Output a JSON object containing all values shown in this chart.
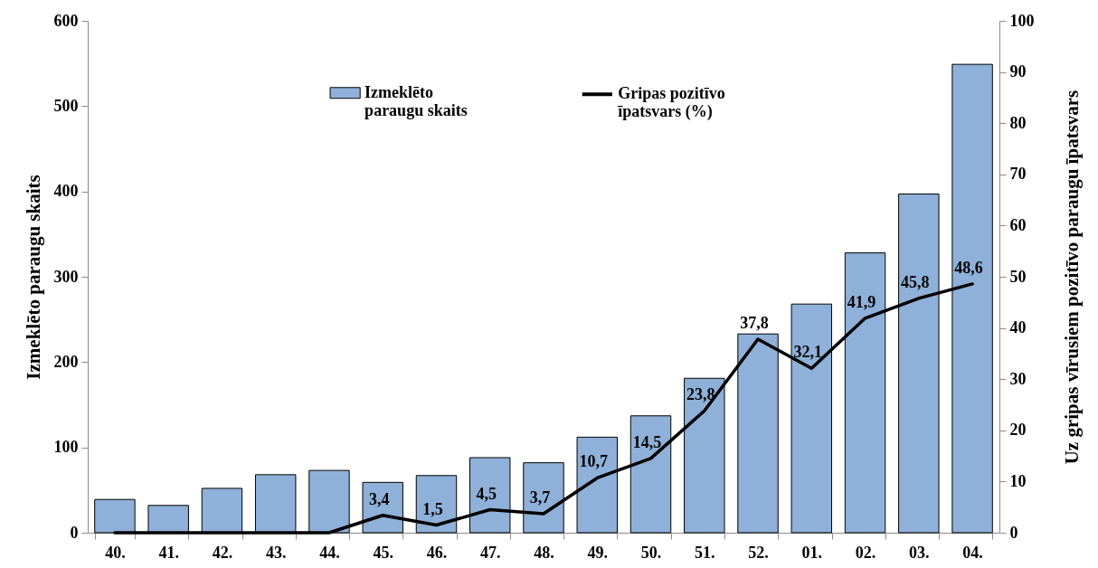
{
  "chart_data": {
    "type": "bar",
    "categories": [
      "40.",
      "41.",
      "42.",
      "43.",
      "44.",
      "45.",
      "46.",
      "47.",
      "48.",
      "49.",
      "50.",
      "51.",
      "52.",
      "01.",
      "02.",
      "03.",
      "04."
    ],
    "ylabel": "Izmeklēto paraugu skaits",
    "y2label": "Uz gripas vīrusiem pozitīvo paraugu īpatsvars",
    "ylim": [
      0,
      600
    ],
    "yticks": [
      0,
      100,
      200,
      300,
      400,
      500,
      600
    ],
    "y2lim": [
      0,
      100
    ],
    "y2ticks": [
      0,
      10,
      20,
      30,
      40,
      50,
      60,
      70,
      80,
      90,
      100
    ],
    "legend": "top",
    "line_style": "solid",
    "series": [
      {
        "name": "Izmeklēto paraugu skaits",
        "color": "#8fb0d8",
        "values": [
          39,
          32,
          52,
          68,
          73,
          59,
          67,
          88,
          82,
          112,
          137,
          181,
          233,
          268,
          328,
          397,
          549
        ]
      },
      {
        "name": "Gripas pozitīvo īpatsvars (%)",
        "type": "line",
        "axis": "y2",
        "color": "#000000",
        "values": [
          0,
          0,
          0,
          0,
          0,
          3.4,
          1.5,
          4.5,
          3.7,
          10.7,
          14.5,
          23.8,
          37.8,
          32.1,
          41.9,
          45.8,
          48.6
        ],
        "value_labels": [
          null,
          null,
          null,
          null,
          null,
          "3,4",
          "1,5",
          "4,5",
          "3,7",
          "10,7",
          "14,5",
          "23,8",
          "37,8",
          "32,1",
          "41,9",
          "45,8",
          "48,6"
        ]
      }
    ]
  }
}
